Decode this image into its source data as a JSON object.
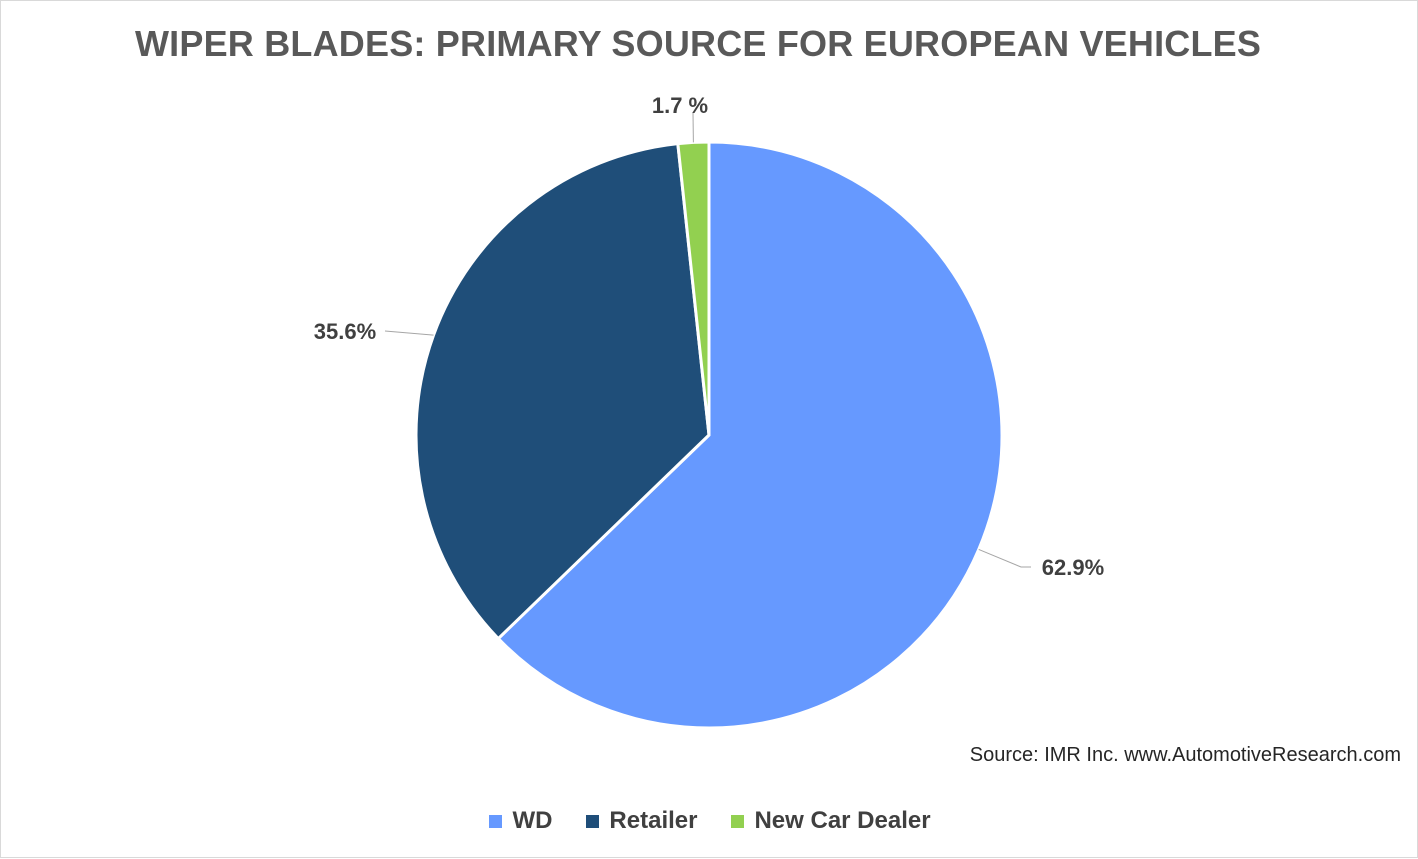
{
  "chart_data": {
    "type": "pie",
    "title": "WIPER BLADES: PRIMARY SOURCE FOR EUROPEAN VEHICLES",
    "slices": [
      {
        "name": "WD",
        "value": 62.9,
        "label": "62.9%",
        "color": "#6699ff"
      },
      {
        "name": "Retailer",
        "value": 35.6,
        "label": "35.6%",
        "color": "#1f4e79"
      },
      {
        "name": "New Car Dealer",
        "value": 1.7,
        "label": "1.7 %",
        "color": "#92d050"
      }
    ],
    "legend_position": "bottom",
    "source": "Source: IMR Inc. www.AutomotiveResearch.com"
  }
}
